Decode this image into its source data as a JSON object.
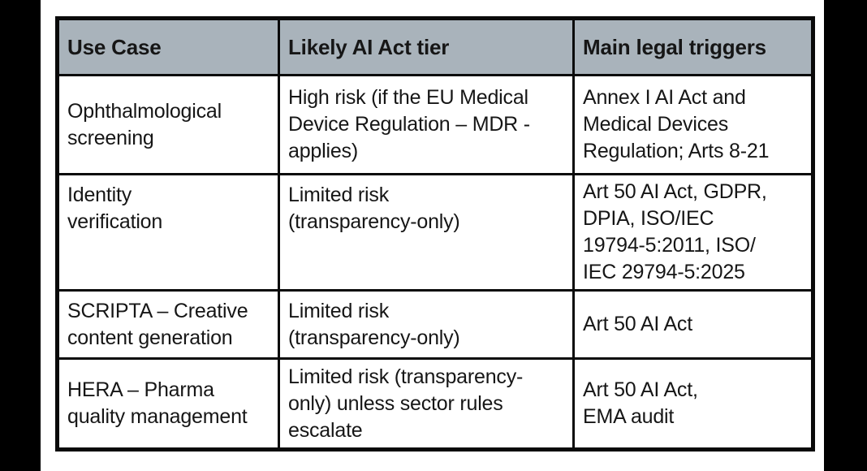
{
  "theme": {
    "header-bg": "#a9b3bb",
    "border": "#0a0a0a",
    "bar": "#000000",
    "text": "#161616"
  },
  "table": {
    "headers": [
      "Use Case",
      "Likely AI Act tier",
      "Main legal triggers"
    ],
    "rows": [
      {
        "cells": [
          "Ophthalmological\nscreening",
          "High risk (if the EU Medical\nDevice Regulation – MDR -\napplies)",
          "Annex I AI Act and\nMedical Devices\nRegulation; Arts 8-21"
        ]
      },
      {
        "cells": [
          "Identity\nverification",
          "Limited risk\n(transparency-only)",
          "Art 50 AI Act, GDPR,\nDPIA, ISO/IEC\n19794-5:2011, ISO/\nIEC 29794-5:2025"
        ]
      },
      {
        "cells": [
          "SCRIPTA – Creative\ncontent generation",
          "Limited risk\n(transparency-only)",
          "Art 50 AI Act"
        ]
      },
      {
        "cells": [
          "HERA – Pharma\nquality management",
          "Limited risk (transparency-\nonly) unless sector rules\nescalate",
          "Art 50 AI Act,\nEMA audit"
        ]
      }
    ]
  }
}
